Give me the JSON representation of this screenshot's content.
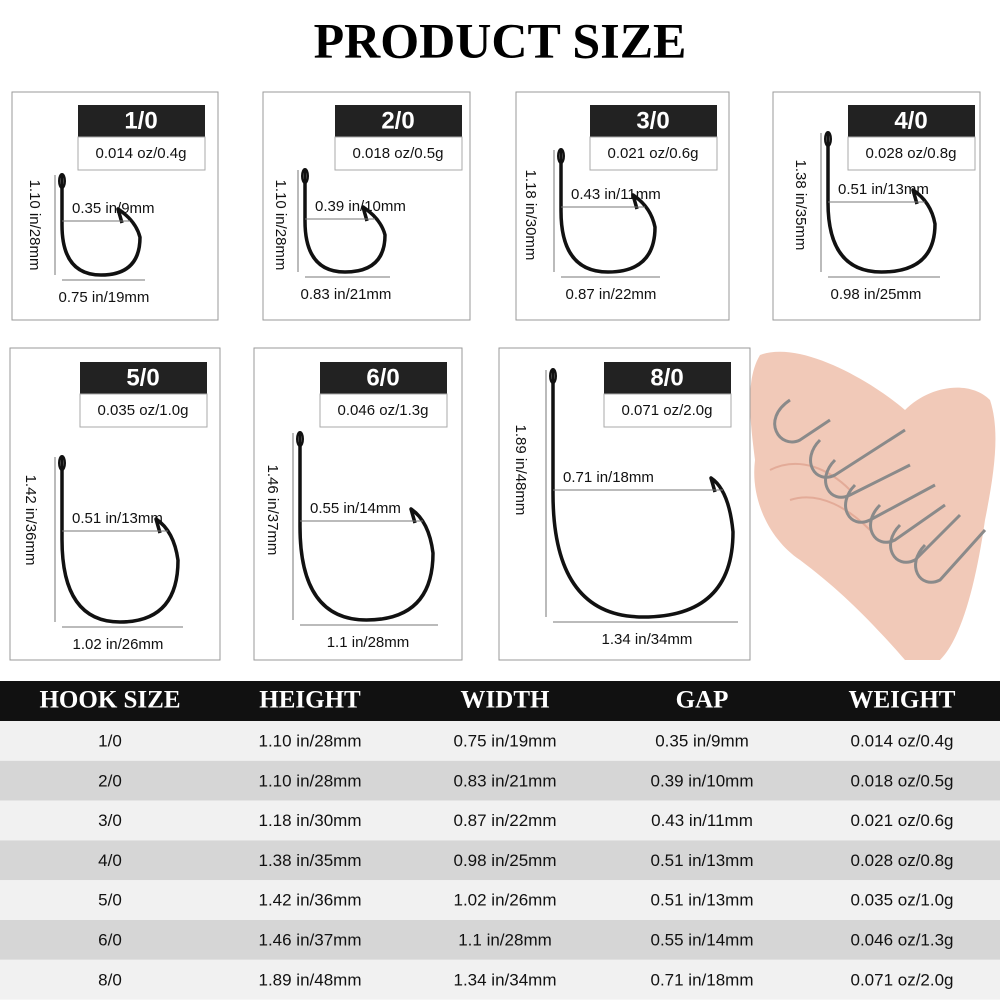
{
  "title": "PRODUCT SIZE",
  "cards": [
    {
      "size": "1/0",
      "weight": "0.014 oz/0.4g",
      "height": "1.10 in/28mm",
      "gap": "0.35 in/9mm",
      "width": "0.75 in/19mm"
    },
    {
      "size": "2/0",
      "weight": "0.018 oz/0.5g",
      "height": "1.10 in/28mm",
      "gap": "0.39 in/10mm",
      "width": "0.83 in/21mm"
    },
    {
      "size": "3/0",
      "weight": "0.021 oz/0.6g",
      "height": "1.18 in/30mm",
      "gap": "0.43 in/11mm",
      "width": "0.87 in/22mm"
    },
    {
      "size": "4/0",
      "weight": "0.028 oz/0.8g",
      "height": "1.38 in/35mm",
      "gap": "0.51 in/13mm",
      "width": "0.98 in/25mm"
    },
    {
      "size": "5/0",
      "weight": "0.035 oz/1.0g",
      "height": "1.42 in/36mm",
      "gap": "0.51 in/13mm",
      "width": "1.02 in/26mm"
    },
    {
      "size": "6/0",
      "weight": "0.046 oz/1.3g",
      "height": "1.46 in/37mm",
      "gap": "0.55 in/14mm",
      "width": "1.1 in/28mm"
    },
    {
      "size": "8/0",
      "weight": "0.071 oz/2.0g",
      "height": "1.89 in/48mm",
      "gap": "0.71 in/18mm",
      "width": "1.34 in/34mm"
    }
  ],
  "table": {
    "headers": [
      "HOOK SIZE",
      "HEIGHT",
      "WIDTH",
      "GAP",
      "WEIGHT"
    ],
    "rows": [
      [
        "1/0",
        "1.10 in/28mm",
        "0.75 in/19mm",
        "0.35 in/9mm",
        "0.014 oz/0.4g"
      ],
      [
        "2/0",
        "1.10 in/28mm",
        "0.83 in/21mm",
        "0.39 in/10mm",
        "0.018 oz/0.5g"
      ],
      [
        "3/0",
        "1.18 in/30mm",
        "0.87 in/22mm",
        "0.43 in/11mm",
        "0.021 oz/0.6g"
      ],
      [
        "4/0",
        "1.38 in/35mm",
        "0.98 in/25mm",
        "0.51 in/13mm",
        "0.028 oz/0.8g"
      ],
      [
        "5/0",
        "1.42 in/36mm",
        "1.02 in/26mm",
        "0.51 in/13mm",
        "0.035 oz/1.0g"
      ],
      [
        "6/0",
        "1.46 in/37mm",
        "1.1 in/28mm",
        "0.55 in/14mm",
        "0.046 oz/1.3g"
      ],
      [
        "8/0",
        "1.89 in/48mm",
        "1.34 in/34mm",
        "0.71 in/18mm",
        "0.071 oz/2.0g"
      ]
    ]
  }
}
